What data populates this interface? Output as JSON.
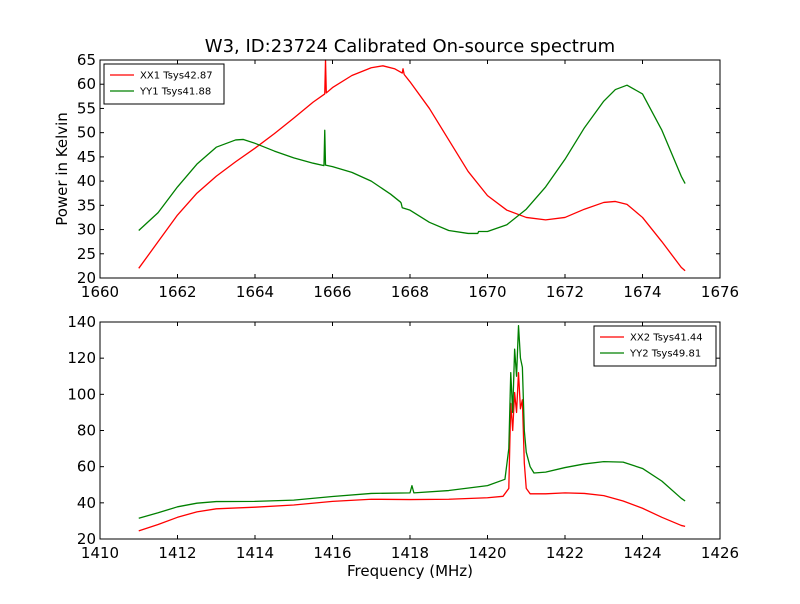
{
  "figure": {
    "title": "W3, ID:23724 Calibrated On-source spectrum"
  },
  "chart_data": [
    {
      "type": "line",
      "title": "W3, ID:23724 Calibrated On-source spectrum",
      "xlabel": "",
      "ylabel": "Power in Kelvin",
      "xlim": [
        1660,
        1676
      ],
      "ylim": [
        20,
        65
      ],
      "xticks": [
        1660,
        1662,
        1664,
        1666,
        1668,
        1670,
        1672,
        1674,
        1676
      ],
      "yticks": [
        20,
        25,
        30,
        35,
        40,
        45,
        50,
        55,
        60,
        65
      ],
      "grid": false,
      "legend_position": "top-left",
      "series": [
        {
          "name": "XX1 Tsys42.87",
          "color": "#ff0000",
          "x": [
            1661.0,
            1661.5,
            1662.0,
            1662.5,
            1663.0,
            1663.5,
            1664.0,
            1664.5,
            1665.0,
            1665.5,
            1665.8,
            1665.82,
            1665.84,
            1666.0,
            1666.5,
            1667.0,
            1667.3,
            1667.6,
            1667.8,
            1667.82,
            1667.85,
            1668.0,
            1668.5,
            1669.0,
            1669.5,
            1670.0,
            1670.5,
            1671.0,
            1671.5,
            1672.0,
            1672.5,
            1673.0,
            1673.3,
            1673.6,
            1674.0,
            1674.5,
            1675.0,
            1675.1
          ],
          "y": [
            22.0,
            27.5,
            33.0,
            37.5,
            41.0,
            44.0,
            46.8,
            49.8,
            53.0,
            56.3,
            58.0,
            65.0,
            58.2,
            59.3,
            61.8,
            63.4,
            63.8,
            63.2,
            62.3,
            63.2,
            62.0,
            60.5,
            55.0,
            48.5,
            42.0,
            37.0,
            34.0,
            32.5,
            32.0,
            32.5,
            34.2,
            35.6,
            35.8,
            35.2,
            32.5,
            27.5,
            22.2,
            21.5
          ]
        },
        {
          "name": "YY1 Tsys41.88",
          "color": "#008000",
          "x": [
            1661.0,
            1661.5,
            1662.0,
            1662.5,
            1663.0,
            1663.5,
            1663.7,
            1664.0,
            1664.5,
            1665.0,
            1665.5,
            1665.78,
            1665.8,
            1665.82,
            1666.0,
            1666.5,
            1667.0,
            1667.5,
            1667.75,
            1667.77,
            1667.8,
            1668.0,
            1668.5,
            1669.0,
            1669.5,
            1669.75,
            1669.77,
            1670.0,
            1670.5,
            1671.0,
            1671.5,
            1672.0,
            1672.5,
            1673.0,
            1673.3,
            1673.6,
            1674.0,
            1674.5,
            1675.0,
            1675.1
          ],
          "y": [
            29.8,
            33.5,
            38.8,
            43.5,
            47.0,
            48.5,
            48.6,
            47.8,
            46.2,
            44.8,
            43.7,
            43.2,
            50.5,
            43.3,
            43.0,
            41.8,
            40.0,
            37.3,
            35.7,
            35.5,
            34.5,
            34.0,
            31.5,
            29.8,
            29.2,
            29.2,
            29.6,
            29.6,
            31.0,
            34.2,
            38.8,
            44.5,
            51.0,
            56.5,
            58.9,
            59.8,
            58.0,
            50.5,
            41.0,
            39.5
          ]
        }
      ]
    },
    {
      "type": "line",
      "title": "",
      "xlabel": "Frequency (MHz)",
      "ylabel": "",
      "xlim": [
        1410,
        1426
      ],
      "ylim": [
        20,
        140
      ],
      "xticks": [
        1410,
        1412,
        1414,
        1416,
        1418,
        1420,
        1422,
        1424,
        1426
      ],
      "yticks": [
        20,
        40,
        60,
        80,
        100,
        120,
        140
      ],
      "grid": false,
      "legend_position": "top-right",
      "series": [
        {
          "name": "XX2 Tsys41.44",
          "color": "#ff0000",
          "x": [
            1411.0,
            1411.5,
            1412.0,
            1412.5,
            1413.0,
            1414.0,
            1415.0,
            1416.0,
            1417.0,
            1418.0,
            1419.0,
            1420.0,
            1420.4,
            1420.55,
            1420.6,
            1420.65,
            1420.7,
            1420.75,
            1420.8,
            1420.85,
            1420.9,
            1420.95,
            1421.0,
            1421.1,
            1421.5,
            1422.0,
            1422.5,
            1423.0,
            1423.5,
            1424.0,
            1424.5,
            1425.0,
            1425.1
          ],
          "y": [
            24.5,
            28.0,
            32.0,
            35.0,
            36.7,
            37.6,
            38.8,
            40.8,
            42.0,
            41.8,
            42.0,
            42.8,
            43.6,
            48.0,
            95.0,
            80.0,
            101.0,
            90.0,
            112.0,
            92.0,
            97.0,
            62.0,
            48.0,
            45.0,
            45.0,
            45.5,
            45.2,
            44.0,
            41.0,
            37.0,
            32.0,
            27.5,
            27.0
          ]
        },
        {
          "name": "YY2 Tsys49.81",
          "color": "#008000",
          "x": [
            1411.0,
            1411.5,
            1412.0,
            1412.5,
            1413.0,
            1414.0,
            1415.0,
            1416.0,
            1417.0,
            1418.0,
            1418.05,
            1418.1,
            1419.0,
            1420.0,
            1420.45,
            1420.55,
            1420.6,
            1420.65,
            1420.7,
            1420.75,
            1420.8,
            1420.85,
            1420.9,
            1420.95,
            1421.0,
            1421.1,
            1421.2,
            1421.5,
            1422.0,
            1422.5,
            1423.0,
            1423.5,
            1424.0,
            1424.5,
            1425.0,
            1425.1
          ],
          "y": [
            31.5,
            34.5,
            37.8,
            39.8,
            40.7,
            40.8,
            41.5,
            43.5,
            45.2,
            45.5,
            49.5,
            45.5,
            46.8,
            49.5,
            53.0,
            70.0,
            112.0,
            90.0,
            125.0,
            110.0,
            138.0,
            120.0,
            115.0,
            80.0,
            68.0,
            60.0,
            56.5,
            57.0,
            59.5,
            61.5,
            62.8,
            62.5,
            59.0,
            52.0,
            42.5,
            41.0
          ]
        }
      ]
    }
  ]
}
